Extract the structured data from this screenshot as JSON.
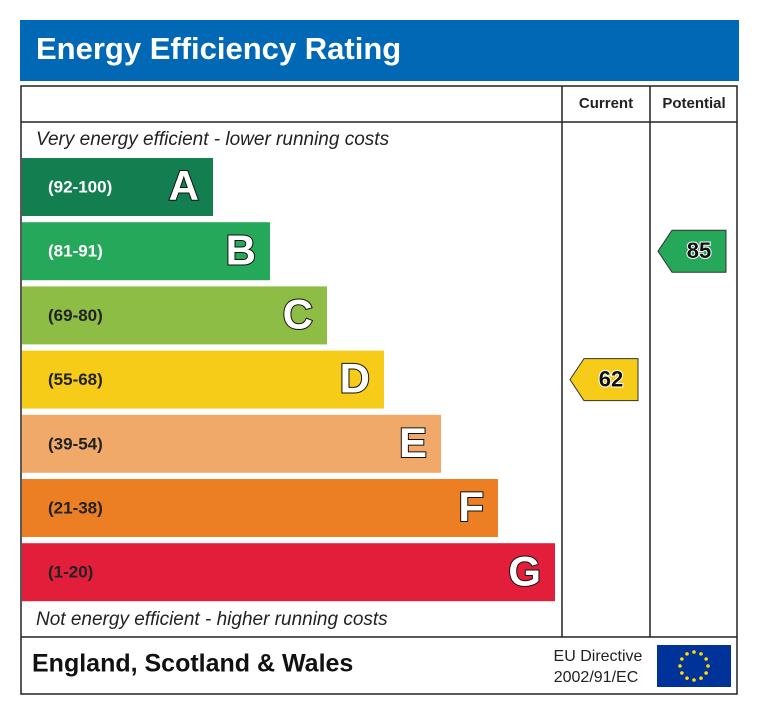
{
  "chart_data": {
    "type": "epc",
    "title": "Energy Efficiency Rating",
    "columns": [
      "Current",
      "Potential"
    ],
    "top_note": "Very energy efficient - lower running costs",
    "bottom_note": "Not energy efficient - higher running costs",
    "bands": [
      {
        "range": "(92-100)",
        "letter": "A",
        "color": "#137e4f",
        "text_color": "#ffffff"
      },
      {
        "range": "(81-91)",
        "letter": "B",
        "color": "#26a85a",
        "text_color": "#ffffff"
      },
      {
        "range": "(69-80)",
        "letter": "C",
        "color": "#8dbd45",
        "text_color": "#222222"
      },
      {
        "range": "(55-68)",
        "letter": "D",
        "color": "#f6cc18",
        "text_color": "#222222"
      },
      {
        "range": "(39-54)",
        "letter": "E",
        "color": "#f1a96a",
        "text_color": "#222222"
      },
      {
        "range": "(21-38)",
        "letter": "F",
        "color": "#ec7f24",
        "text_color": "#222222"
      },
      {
        "range": "(1-20)",
        "letter": "G",
        "color": "#e31e3a",
        "text_color": "#222222"
      }
    ],
    "current": 62,
    "potential": 85,
    "region": "England, Scotland & Wales",
    "directive": [
      "EU Directive",
      "2002/91/EC"
    ]
  }
}
